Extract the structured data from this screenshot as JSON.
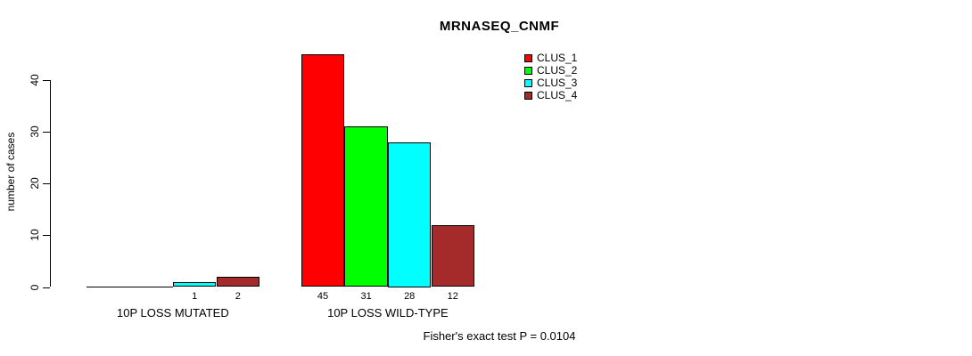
{
  "title": "MRNASEQ_CNMF",
  "ylabel": "number of cases",
  "footnote": "Fisher's exact test P = 0.0104",
  "chart_data": {
    "type": "bar",
    "title": "MRNASEQ_CNMF",
    "xlabel": "",
    "ylabel": "number of cases",
    "categories": [
      "10P LOSS MUTATED",
      "10P LOSS WILD-TYPE"
    ],
    "series": [
      {
        "name": "CLUS_1",
        "color": "#ff0000",
        "values": [
          0,
          45
        ]
      },
      {
        "name": "CLUS_2",
        "color": "#00ff00",
        "values": [
          0,
          31
        ]
      },
      {
        "name": "CLUS_3",
        "color": "#00ffff",
        "values": [
          1,
          28
        ]
      },
      {
        "name": "CLUS_4",
        "color": "#a52a2a",
        "values": [
          2,
          12
        ]
      }
    ],
    "bar_value_labels": [
      [
        "",
        "",
        "1",
        "2"
      ],
      [
        "45",
        "31",
        "28",
        "12"
      ]
    ],
    "yticks": [
      0,
      10,
      20,
      30,
      40
    ],
    "ylim": [
      0,
      45
    ],
    "grid": false,
    "legend_position": "top-right",
    "annotation": "Fisher's exact test P = 0.0104",
    "bar_border_color": "#000000",
    "background_color": "#ffffff"
  }
}
